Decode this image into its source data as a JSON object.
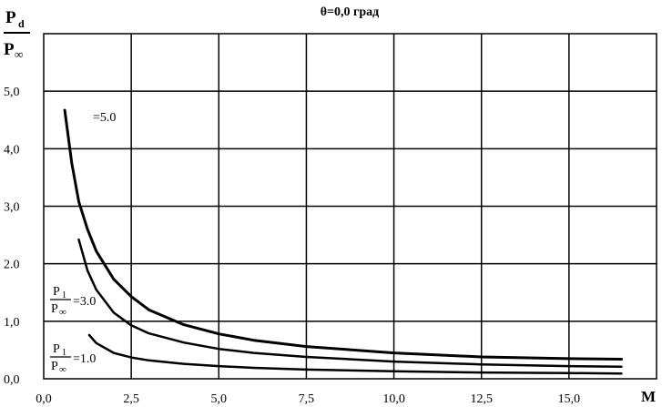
{
  "chart_data": {
    "type": "line",
    "title": "θ=0,0 град",
    "ylabel": {
      "numerator": "P",
      "numerator_sub": "d",
      "denominator": "P",
      "denominator_sub": "∞"
    },
    "xlabel": "M",
    "xlim": [
      0,
      17.5
    ],
    "ylim": [
      0,
      6.0
    ],
    "grid": true,
    "x_ticks": [
      {
        "value": 0,
        "label": "0,0"
      },
      {
        "value": 2.5,
        "label": "2,5"
      },
      {
        "value": 5,
        "label": "5,0"
      },
      {
        "value": 7.5,
        "label": "7,5"
      },
      {
        "value": 10,
        "label": "10,0"
      },
      {
        "value": 12.5,
        "label": "12,5"
      },
      {
        "value": 15,
        "label": "15,0"
      }
    ],
    "y_ticks": [
      {
        "value": 0,
        "label": "0,0"
      },
      {
        "value": 1,
        "label": "1,0"
      },
      {
        "value": 2,
        "label": "2.0"
      },
      {
        "value": 3,
        "label": "3,0"
      },
      {
        "value": 4,
        "label": "4,0"
      },
      {
        "value": 5,
        "label": "5,0"
      }
    ],
    "series": [
      {
        "label_parts": {
          "prefix": "",
          "value": "=5.0"
        },
        "x": [
          0.6,
          0.8,
          1.0,
          1.25,
          1.5,
          2.0,
          2.5,
          3.0,
          4.0,
          5.0,
          6.0,
          7.5,
          10.0,
          12.5,
          15.0,
          16.5
        ],
        "y": [
          4.67,
          3.75,
          3.08,
          2.6,
          2.22,
          1.73,
          1.43,
          1.2,
          0.94,
          0.78,
          0.67,
          0.56,
          0.45,
          0.38,
          0.35,
          0.34
        ]
      },
      {
        "label_parts": {
          "prefix": "P",
          "prefix_sub": "1",
          "den": "P",
          "den_sub": "∞",
          "value": "=3.0"
        },
        "x": [
          1.0,
          1.25,
          1.5,
          2.0,
          2.5,
          3.0,
          4.0,
          5.0,
          6.0,
          7.5,
          10.0,
          12.5,
          15.0,
          16.5
        ],
        "y": [
          2.42,
          1.88,
          1.55,
          1.15,
          0.93,
          0.79,
          0.63,
          0.52,
          0.45,
          0.38,
          0.3,
          0.25,
          0.22,
          0.21
        ]
      },
      {
        "label_parts": {
          "prefix": "P",
          "prefix_sub": "1",
          "den": "P",
          "den_sub": "∞",
          "value": "=1.0"
        },
        "x": [
          1.3,
          1.5,
          2.0,
          2.5,
          3.0,
          4.0,
          5.0,
          6.0,
          7.5,
          10.0,
          12.5,
          15.0,
          16.5
        ],
        "y": [
          0.76,
          0.62,
          0.45,
          0.37,
          0.32,
          0.26,
          0.22,
          0.19,
          0.16,
          0.13,
          0.11,
          0.1,
          0.09
        ]
      }
    ]
  }
}
